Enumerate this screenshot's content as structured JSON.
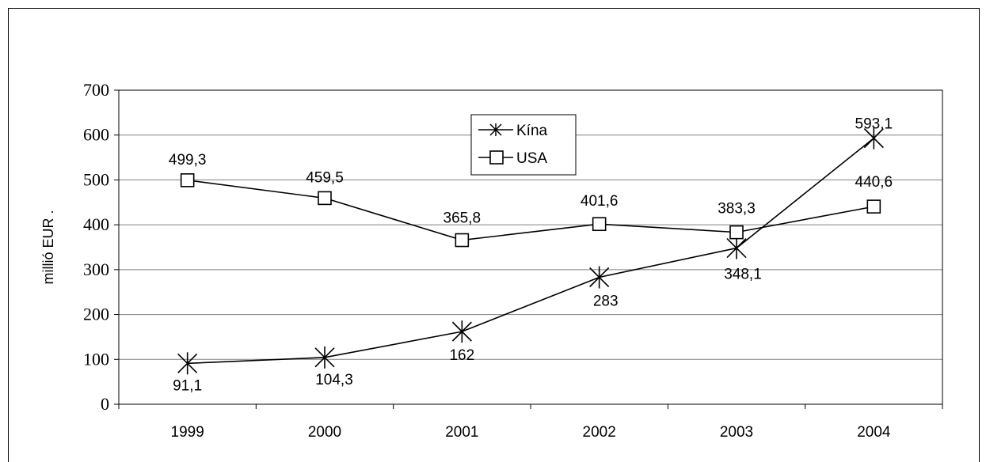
{
  "chart_data": {
    "type": "line",
    "categories": [
      "1999",
      "2000",
      "2001",
      "2002",
      "2003",
      "2004"
    ],
    "ylabel": "millió EUR  .",
    "ylim": [
      0,
      700
    ],
    "yticks": [
      "0",
      "100",
      "200",
      "300",
      "400",
      "500",
      "600",
      "700"
    ],
    "grid": true,
    "legend_position": "top-center",
    "series": [
      {
        "name": "Kína",
        "marker": "asterisk",
        "values": [
          91.1,
          104.3,
          162,
          283,
          348.1,
          593.1
        ],
        "labels": [
          "91,1",
          "104,3",
          "162",
          "283",
          "348,1",
          "593,1"
        ],
        "color": "#000000"
      },
      {
        "name": "USA",
        "marker": "square",
        "values": [
          499.3,
          459.5,
          365.8,
          401.6,
          383.3,
          440.6
        ],
        "labels": [
          "499,3",
          "459,5",
          "365,8",
          "401,6",
          "383,3",
          "440,6"
        ],
        "color": "#000000"
      }
    ]
  }
}
